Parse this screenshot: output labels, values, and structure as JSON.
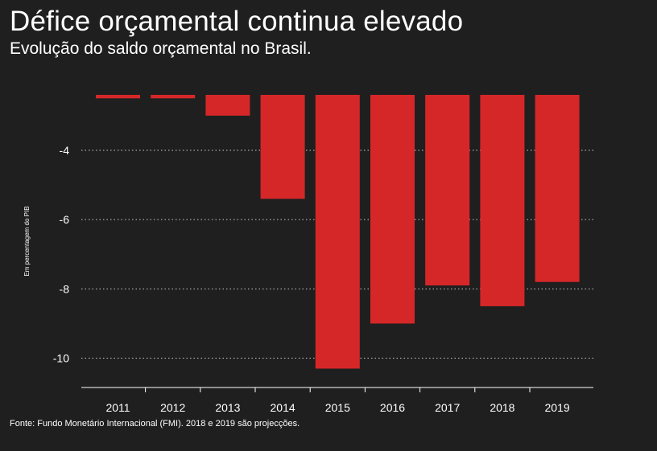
{
  "header": {
    "title": "Défice orçamental continua elevado",
    "subtitle": "Evolução do saldo orçamental no Brasil."
  },
  "footer": {
    "source": "Fonte: Fundo Monetário Internacional (FMI). 2018 e 2019 são projecções."
  },
  "colors": {
    "background": "#1f1f1f",
    "bar": "#d62728",
    "text": "#ffffff",
    "grid": "#cccccc"
  },
  "chart_data": {
    "type": "bar",
    "categories": [
      "2011",
      "2012",
      "2013",
      "2014",
      "2015",
      "2016",
      "2017",
      "2018",
      "2019"
    ],
    "values": [
      -2.5,
      -2.5,
      -3.0,
      -5.4,
      -10.3,
      -9.0,
      -7.9,
      -8.5,
      -7.8
    ],
    "baseline": -2.4,
    "ylabel": "Em percentagem do PIB",
    "yticks": [
      -4,
      -6,
      -8,
      -10
    ],
    "ylim": [
      -10.8,
      -2.4
    ],
    "grid": true,
    "grid_style": "dotted"
  }
}
